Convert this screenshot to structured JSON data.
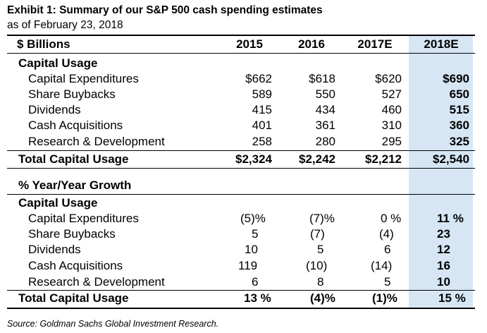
{
  "exhibit": {
    "title": "Exhibit 1: Summary of our S&P 500 cash spending estimates",
    "subtitle": "as of February 23, 2018"
  },
  "table": {
    "unit_label": "$ Billions",
    "columns": [
      "2015",
      "2016",
      "2017E",
      "2018E"
    ],
    "highlight_color": "#d6e6f4",
    "dollars": {
      "section_label": "Capital Usage",
      "rows": [
        {
          "label": "Capital Expenditures",
          "values": [
            "$662",
            "$618",
            "$620",
            "$690"
          ]
        },
        {
          "label": "Share Buybacks",
          "values": [
            "589",
            "550",
            "527",
            "650"
          ]
        },
        {
          "label": "Dividends",
          "values": [
            "415",
            "434",
            "460",
            "515"
          ]
        },
        {
          "label": "Cash Acquisitions",
          "values": [
            "401",
            "361",
            "310",
            "360"
          ]
        },
        {
          "label": "Research & Development",
          "values": [
            "258",
            "280",
            "295",
            "325"
          ]
        }
      ],
      "total": {
        "label": "Total Capital Usage",
        "values": [
          "$2,324",
          "$2,242",
          "$2,212",
          "$2,540"
        ]
      }
    },
    "growth": {
      "header": "% Year/Year Growth",
      "section_label": "Capital Usage",
      "rows": [
        {
          "label": "Capital Expenditures",
          "values": [
            "(5)%",
            "(7)%",
            "0 %",
            "11 %"
          ]
        },
        {
          "label": "Share Buybacks",
          "values": [
            "5",
            "(7)",
            "(4)",
            "23"
          ]
        },
        {
          "label": "Dividends",
          "values": [
            "10",
            "5",
            "6",
            "12"
          ]
        },
        {
          "label": "Cash Acquisitions",
          "values": [
            "119",
            "(10)",
            "(14)",
            "16"
          ]
        },
        {
          "label": "Research & Development",
          "values": [
            "6",
            "8",
            "5",
            "10"
          ]
        }
      ],
      "total": {
        "label": "Total Capital Usage",
        "values": [
          "13 %",
          "(4)%",
          "(1)%",
          "15 %"
        ]
      }
    }
  },
  "source": "Source: Goldman Sachs Global Investment Research."
}
